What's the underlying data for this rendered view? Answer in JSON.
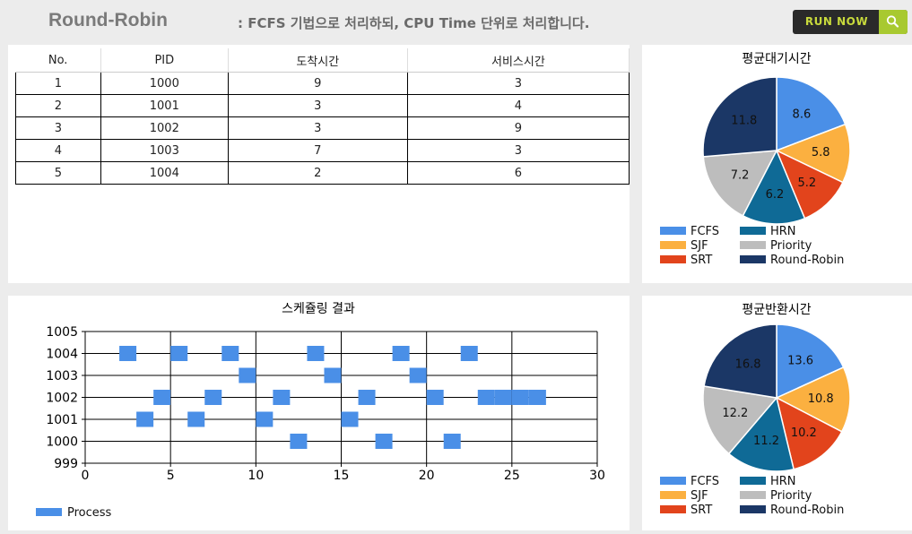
{
  "header": {
    "title": "Round-Robin",
    "description": ":  FCFS 기법으로 처리하되, CPU Time 단위로 처리합니다.",
    "run_label": "RUN NOW",
    "run_icon": "search-icon"
  },
  "process_table": {
    "columns": [
      "No.",
      "PID",
      "도착시간",
      "서비스시간"
    ],
    "rows": [
      [
        "1",
        "1000",
        "9",
        "3"
      ],
      [
        "2",
        "1001",
        "3",
        "4"
      ],
      [
        "3",
        "1002",
        "3",
        "9"
      ],
      [
        "4",
        "1003",
        "7",
        "3"
      ],
      [
        "5",
        "1004",
        "2",
        "6"
      ]
    ]
  },
  "chart_data": [
    {
      "type": "pie",
      "title": "평균대기시간",
      "categories": [
        "FCFS",
        "SJF",
        "SRT",
        "HRN",
        "Priority",
        "Round-Robin"
      ],
      "values": [
        8.6,
        5.8,
        5.2,
        6.2,
        7.2,
        11.8
      ],
      "colors": [
        "#4a8fe7",
        "#fbb040",
        "#e2441c",
        "#0f6a96",
        "#bdbdbd",
        "#1b3766"
      ],
      "legend": "bottom"
    },
    {
      "type": "pie",
      "title": "평균반환시간",
      "categories": [
        "FCFS",
        "SJF",
        "SRT",
        "HRN",
        "Priority",
        "Round-Robin"
      ],
      "values": [
        13.6,
        10.8,
        10.2,
        11.2,
        12.2,
        16.8
      ],
      "colors": [
        "#4a8fe7",
        "#fbb040",
        "#e2441c",
        "#0f6a96",
        "#bdbdbd",
        "#1b3766"
      ],
      "legend": "bottom"
    },
    {
      "type": "scatter",
      "title": "스케쥴링 결과",
      "series": [
        {
          "name": "Process",
          "color": "#4a8fe7",
          "points": [
            [
              2.5,
              1004
            ],
            [
              3.5,
              1001
            ],
            [
              4.5,
              1002
            ],
            [
              5.5,
              1004
            ],
            [
              6.5,
              1001
            ],
            [
              7.5,
              1002
            ],
            [
              8.5,
              1004
            ],
            [
              9.5,
              1003
            ],
            [
              10.5,
              1001
            ],
            [
              11.5,
              1002
            ],
            [
              12.5,
              1000
            ],
            [
              13.5,
              1004
            ],
            [
              14.5,
              1003
            ],
            [
              15.5,
              1001
            ],
            [
              16.5,
              1002
            ],
            [
              17.5,
              1000
            ],
            [
              18.5,
              1004
            ],
            [
              19.5,
              1003
            ],
            [
              20.5,
              1002
            ],
            [
              21.5,
              1000
            ],
            [
              22.5,
              1004
            ],
            [
              23.5,
              1002
            ],
            [
              24.5,
              1002
            ],
            [
              25.5,
              1002
            ],
            [
              26.5,
              1002
            ]
          ]
        }
      ],
      "xlim": [
        0,
        30
      ],
      "ylim": [
        999,
        1005
      ],
      "xticks": [
        "0",
        "5",
        "10",
        "15",
        "20",
        "25",
        "30"
      ],
      "yticks": [
        "999",
        "1000",
        "1001",
        "1002",
        "1003",
        "1004",
        "1005"
      ],
      "grid": true,
      "legend": "bottom-left"
    }
  ]
}
